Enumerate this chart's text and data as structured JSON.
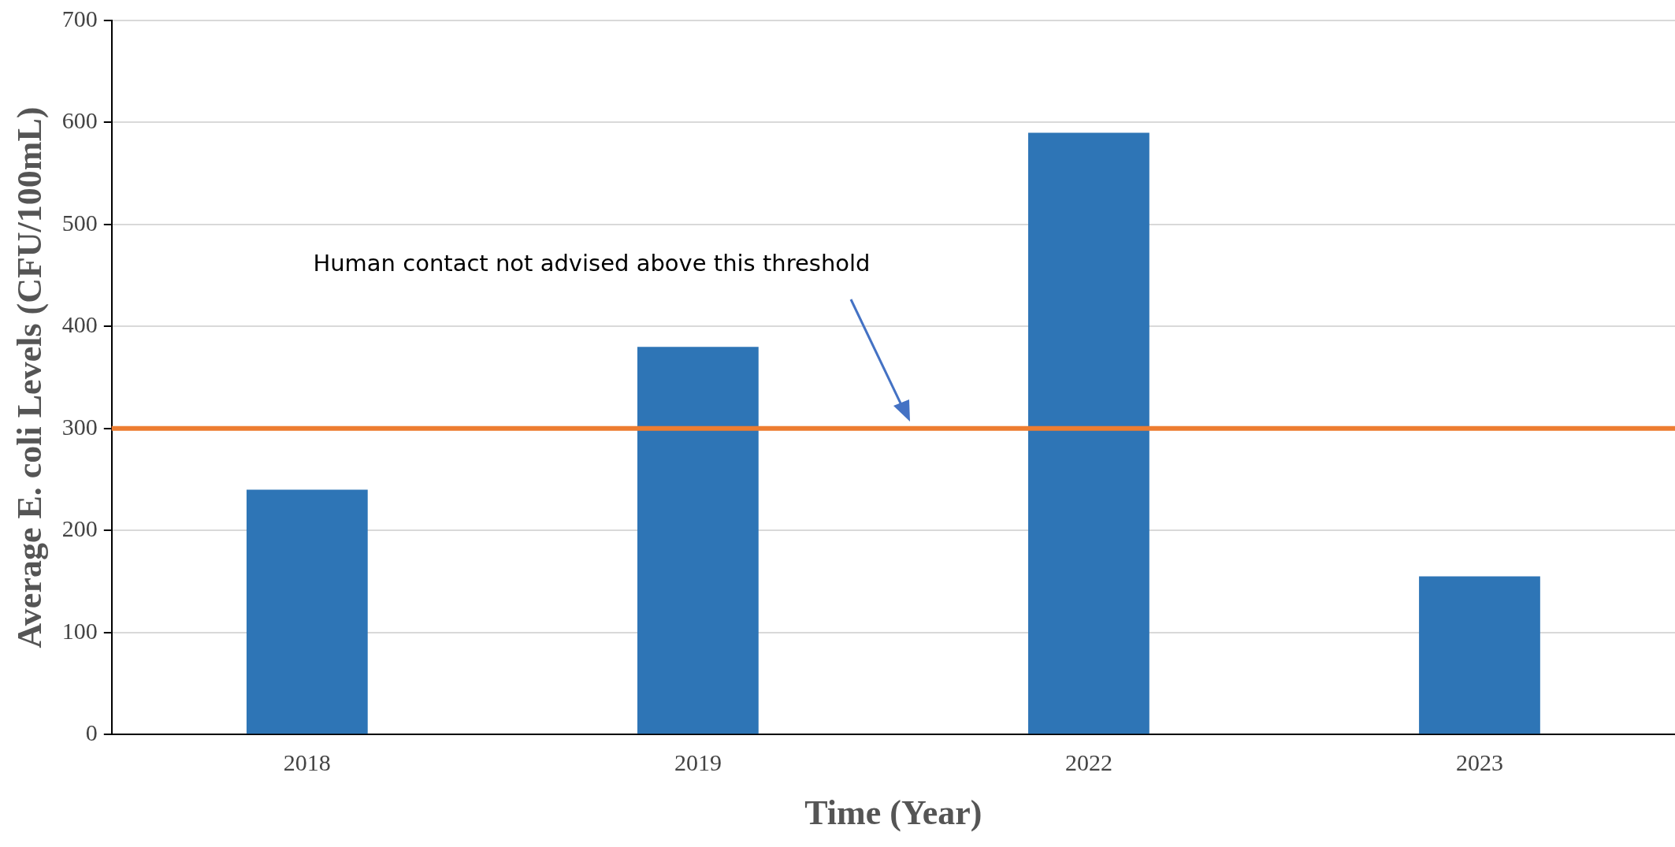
{
  "chart_data": {
    "type": "bar",
    "xlabel": "Time (Year)",
    "ylabel": "Average E. coli Levels (CFU/100mL)",
    "categories": [
      "2018",
      "2019",
      "2022",
      "2023"
    ],
    "values": [
      240,
      380,
      590,
      155
    ],
    "color": "#2e75b6",
    "ylim": [
      0,
      700
    ],
    "yticks": [
      0,
      100,
      200,
      300,
      400,
      500,
      600,
      700
    ],
    "grid": "y",
    "legend": false,
    "ref_lines": [
      {
        "axis": "y",
        "value": 300,
        "color": "#ed7d31"
      }
    ],
    "annotations": [
      "Human contact not advised above this threshold"
    ]
  }
}
